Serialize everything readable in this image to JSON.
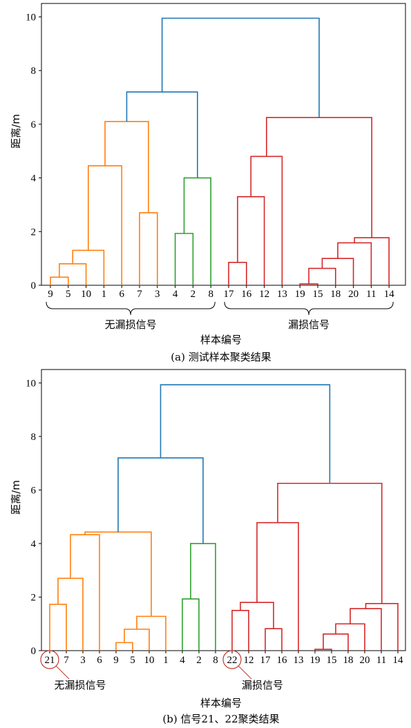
{
  "chart_data": [
    {
      "type": "dendrogram",
      "ylabel": "距离/m",
      "xlabel": "样本编号",
      "caption": "(a) 测试样本聚类结果",
      "ylim": [
        0,
        10.5
      ],
      "yticks": [
        0,
        2,
        4,
        6,
        8,
        10
      ],
      "leaf_labels": [
        "9",
        "5",
        "10",
        "1",
        "6",
        "7",
        "3",
        "4",
        "2",
        "8",
        "17",
        "16",
        "12",
        "13",
        "19",
        "15",
        "18",
        "20",
        "11",
        "14"
      ],
      "colors": {
        "orange": "#ff7f0e",
        "green": "#2ca02c",
        "red": "#d62728",
        "blue": "#1f77b4"
      },
      "links": [
        {
          "left": "leaf:0",
          "right": "leaf:1",
          "height": 0.3,
          "color": "orange"
        },
        {
          "left": "n0",
          "right": "leaf:2",
          "height": 0.8,
          "color": "orange"
        },
        {
          "left": "n1",
          "right": "leaf:3",
          "height": 1.3,
          "color": "orange"
        },
        {
          "left": "n2",
          "right": "leaf:4",
          "height": 4.45,
          "color": "orange"
        },
        {
          "left": "leaf:5",
          "right": "leaf:6",
          "height": 2.7,
          "color": "orange"
        },
        {
          "left": "n3",
          "right": "n4",
          "height": 6.1,
          "color": "orange"
        },
        {
          "left": "leaf:7",
          "right": "leaf:8",
          "height": 1.93,
          "color": "green"
        },
        {
          "left": "n6",
          "right": "leaf:9",
          "height": 4.0,
          "color": "green"
        },
        {
          "left": "n5",
          "right": "n7",
          "height": 7.2,
          "color": "blue"
        },
        {
          "left": "leaf:10",
          "right": "leaf:11",
          "height": 0.85,
          "color": "red"
        },
        {
          "left": "n9",
          "right": "leaf:12",
          "height": 3.3,
          "color": "red"
        },
        {
          "left": "n10",
          "right": "leaf:13",
          "height": 4.8,
          "color": "red"
        },
        {
          "left": "leaf:14",
          "right": "leaf:15",
          "height": 0.05,
          "color": "red"
        },
        {
          "left": "n12",
          "right": "leaf:16",
          "height": 0.63,
          "color": "red"
        },
        {
          "left": "n13",
          "right": "leaf:17",
          "height": 1.0,
          "color": "red"
        },
        {
          "left": "n14",
          "right": "leaf:18",
          "height": 1.58,
          "color": "red"
        },
        {
          "left": "n15",
          "right": "leaf:19",
          "height": 1.77,
          "color": "red"
        },
        {
          "left": "n11",
          "right": "n16",
          "height": 6.25,
          "color": "red"
        },
        {
          "left": "n8",
          "right": "n17",
          "height": 9.95,
          "color": "blue"
        }
      ],
      "groups": [
        {
          "label": "无漏损信号",
          "from_leaf": 0,
          "to_leaf": 9
        },
        {
          "label": "漏损信号",
          "from_leaf": 10,
          "to_leaf": 19
        }
      ]
    },
    {
      "type": "dendrogram",
      "ylabel": "距离/m",
      "xlabel": "样本编号",
      "caption": "(b) 信号21、22聚类结果",
      "ylim": [
        0,
        10.5
      ],
      "yticks": [
        0,
        2,
        4,
        6,
        8,
        10
      ],
      "leaf_labels": [
        "21",
        "7",
        "3",
        "6",
        "9",
        "5",
        "10",
        "1",
        "4",
        "2",
        "8",
        "22",
        "12",
        "17",
        "16",
        "13",
        "19",
        "15",
        "18",
        "20",
        "11",
        "14"
      ],
      "colors": {
        "orange": "#ff7f0e",
        "green": "#2ca02c",
        "red": "#d62728",
        "blue": "#1f77b4"
      },
      "links": [
        {
          "left": "leaf:0",
          "right": "leaf:1",
          "height": 1.73,
          "color": "orange"
        },
        {
          "left": "n0",
          "right": "leaf:2",
          "height": 2.7,
          "color": "orange"
        },
        {
          "left": "n1",
          "right": "leaf:3",
          "height": 4.33,
          "color": "orange"
        },
        {
          "left": "leaf:4",
          "right": "leaf:5",
          "height": 0.3,
          "color": "orange"
        },
        {
          "left": "n3",
          "right": "leaf:6",
          "height": 0.8,
          "color": "orange"
        },
        {
          "left": "n4",
          "right": "leaf:7",
          "height": 1.28,
          "color": "orange"
        },
        {
          "left": "n2",
          "right": "n5",
          "height": 4.43,
          "color": "orange"
        },
        {
          "left": "leaf:8",
          "right": "leaf:9",
          "height": 1.93,
          "color": "green"
        },
        {
          "left": "n7",
          "right": "leaf:10",
          "height": 4.0,
          "color": "green"
        },
        {
          "left": "n6",
          "right": "n8",
          "height": 7.2,
          "color": "blue"
        },
        {
          "left": "leaf:11",
          "right": "leaf:12",
          "height": 1.5,
          "color": "red"
        },
        {
          "left": "leaf:13",
          "right": "leaf:14",
          "height": 0.82,
          "color": "red"
        },
        {
          "left": "n10",
          "right": "n11",
          "height": 1.8,
          "color": "red"
        },
        {
          "left": "n12",
          "right": "leaf:15",
          "height": 4.78,
          "color": "red"
        },
        {
          "left": "leaf:16",
          "right": "leaf:17",
          "height": 0.05,
          "color": "red"
        },
        {
          "left": "n14",
          "right": "leaf:18",
          "height": 0.62,
          "color": "red"
        },
        {
          "left": "n15",
          "right": "leaf:19",
          "height": 1.0,
          "color": "red"
        },
        {
          "left": "n16",
          "right": "leaf:20",
          "height": 1.57,
          "color": "red"
        },
        {
          "left": "n17",
          "right": "leaf:21",
          "height": 1.76,
          "color": "red"
        },
        {
          "left": "n13",
          "right": "n18",
          "height": 6.25,
          "color": "red"
        },
        {
          "left": "n9",
          "right": "n19",
          "height": 9.93,
          "color": "blue"
        }
      ],
      "highlights": [
        {
          "leaf": 0,
          "label": "无漏损信号"
        },
        {
          "leaf": 11,
          "label": "漏损信号"
        }
      ]
    }
  ]
}
